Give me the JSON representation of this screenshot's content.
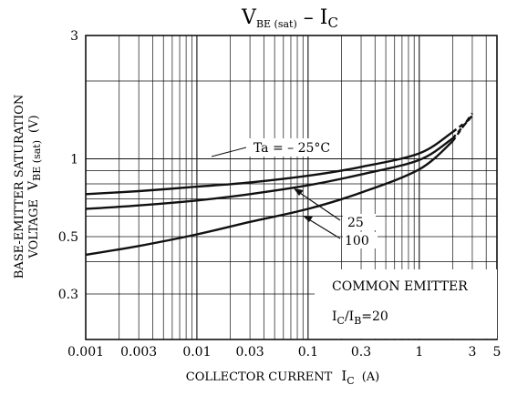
{
  "chart_data": {
    "type": "line",
    "title": {
      "main": "V",
      "main_sub": "BE (sat)",
      "sep": " – ",
      "second": "I",
      "second_sub": "C"
    },
    "xlabel": {
      "text": "COLLECTOR CURRENT",
      "sym": "I",
      "sym_sub": "C",
      "unit": "(A)"
    },
    "ylabel": {
      "line1": "BASE-EMITTER SATURATION",
      "line2_a": "VOLTAGE",
      "line2_sym": "V",
      "line2_sub": "BE (sat)",
      "line2_unit": "(V)"
    },
    "x_scale": "log",
    "y_scale": "log",
    "xlim": [
      0.001,
      5
    ],
    "ylim": [
      0.2,
      3
    ],
    "xticks": [
      {
        "value": 0.001,
        "label": "0.001"
      },
      {
        "value": 0.003,
        "label": "0.003"
      },
      {
        "value": 0.01,
        "label": "0.01"
      },
      {
        "value": 0.03,
        "label": "0.03"
      },
      {
        "value": 0.1,
        "label": "0.1"
      },
      {
        "value": 0.3,
        "label": "0.3"
      },
      {
        "value": 1,
        "label": "1"
      },
      {
        "value": 3,
        "label": "3"
      },
      {
        "value": 5,
        "label": "5"
      }
    ],
    "yticks": [
      {
        "value": 0.3,
        "label": "0.3"
      },
      {
        "value": 0.5,
        "label": "0.5"
      },
      {
        "value": 1,
        "label": "1"
      },
      {
        "value": 3,
        "label": "3"
      }
    ],
    "grid": true,
    "series": [
      {
        "name": "Ta = – 25°C",
        "points": [
          [
            0.001,
            0.73
          ],
          [
            0.003,
            0.75
          ],
          [
            0.01,
            0.78
          ],
          [
            0.03,
            0.81
          ],
          [
            0.1,
            0.86
          ],
          [
            0.3,
            0.93
          ],
          [
            1,
            1.05
          ],
          [
            2,
            1.27
          ]
        ],
        "extrapolated": [
          [
            2,
            1.27
          ],
          [
            3,
            1.45
          ]
        ]
      },
      {
        "name": "25",
        "points": [
          [
            0.001,
            0.64
          ],
          [
            0.003,
            0.66
          ],
          [
            0.01,
            0.69
          ],
          [
            0.03,
            0.73
          ],
          [
            0.1,
            0.79
          ],
          [
            0.3,
            0.87
          ],
          [
            1,
            0.99
          ],
          [
            2,
            1.2
          ]
        ],
        "extrapolated": [
          [
            2,
            1.2
          ],
          [
            3,
            1.47
          ]
        ]
      },
      {
        "name": "100",
        "points": [
          [
            0.001,
            0.425
          ],
          [
            0.003,
            0.46
          ],
          [
            0.01,
            0.51
          ],
          [
            0.03,
            0.57
          ],
          [
            0.1,
            0.64
          ],
          [
            0.3,
            0.74
          ],
          [
            1,
            0.91
          ],
          [
            2,
            1.17
          ]
        ],
        "extrapolated": [
          [
            2,
            1.17
          ],
          [
            3,
            1.5
          ]
        ]
      }
    ],
    "annotations": {
      "box_line1": "COMMON EMITTER",
      "box_ratio_a": "I",
      "box_ratio_a_sub": "C",
      "box_ratio_sep": "/",
      "box_ratio_b": "I",
      "box_ratio_b_sub": "B",
      "box_ratio_value": "=20"
    }
  }
}
